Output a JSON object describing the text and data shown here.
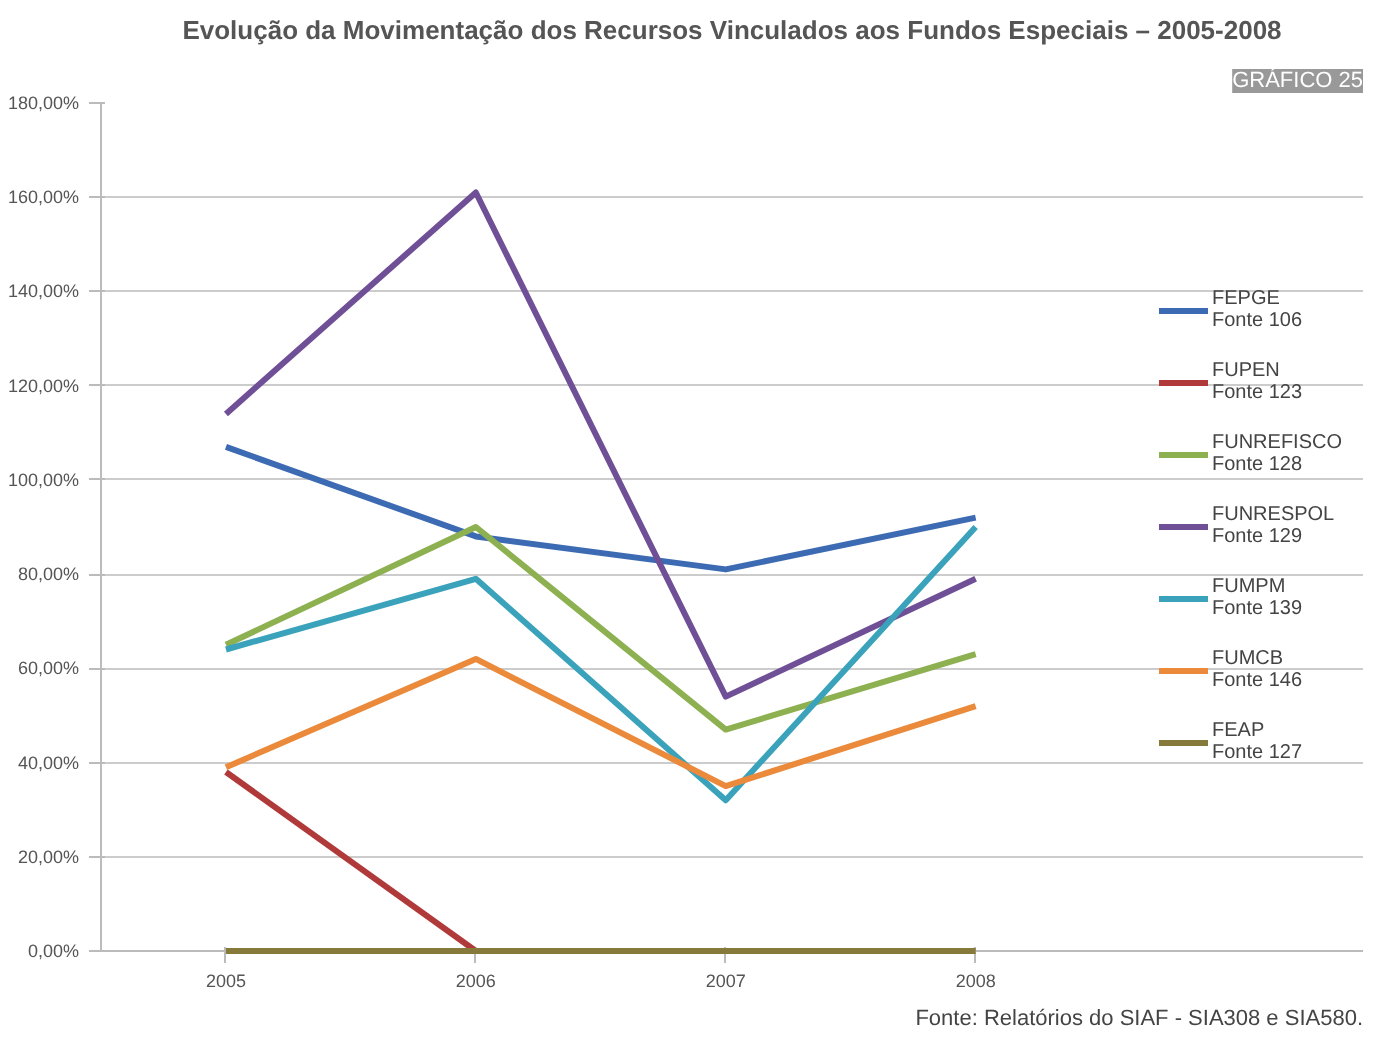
{
  "chart_data": {
    "type": "line",
    "title": "Evolução da Movimentação dos Recursos Vinculados aos Fundos Especiais – 2005-2008",
    "annotations": [
      "GRÁFICO 25",
      "Fonte: Relatórios do SIAF - SIA308 e SIA580."
    ],
    "categories": [
      "2005",
      "2006",
      "2007",
      "2008"
    ],
    "series": [
      {
        "name": "FEPGE\nFonte 106",
        "color": "#3d6bb3",
        "values": [
          107,
          88,
          81,
          92
        ]
      },
      {
        "name": "FUPEN\nFonte 123",
        "color": "#b03a3a",
        "values": [
          38,
          0,
          null,
          null
        ]
      },
      {
        "name": "FUNREFISCO\nFonte 128",
        "color": "#8db050",
        "values": [
          65,
          90,
          47,
          63
        ]
      },
      {
        "name": "FUNRESPOL\nFonte 129",
        "color": "#6f4f96",
        "values": [
          114,
          161,
          54,
          79
        ]
      },
      {
        "name": "FUMPM\nFonte 139",
        "color": "#3aa3bb",
        "values": [
          64,
          79,
          32,
          90
        ]
      },
      {
        "name": "FUMCB\nFonte 146",
        "color": "#ea8a3a",
        "values": [
          39,
          62,
          35,
          52
        ]
      },
      {
        "name": "FEAP\nFonte 127",
        "color": "#857a3a",
        "values": [
          0,
          0,
          0,
          0
        ]
      }
    ],
    "ylim": [
      0,
      180
    ],
    "yticks": [
      {
        "value": 0,
        "label": "0,00%"
      },
      {
        "value": 20,
        "label": "20,00%"
      },
      {
        "value": 40,
        "label": "40,00%"
      },
      {
        "value": 60,
        "label": "60,00%"
      },
      {
        "value": 80,
        "label": "80,00%"
      },
      {
        "value": 100,
        "label": "100,00%"
      },
      {
        "value": 120,
        "label": "120,00%"
      },
      {
        "value": 140,
        "label": "140,00%"
      },
      {
        "value": 160,
        "label": "160,00%"
      },
      {
        "value": 180,
        "label": "180,00%"
      }
    ],
    "grid": "y",
    "legend": "right",
    "marker": "none",
    "line_style": "solid"
  }
}
